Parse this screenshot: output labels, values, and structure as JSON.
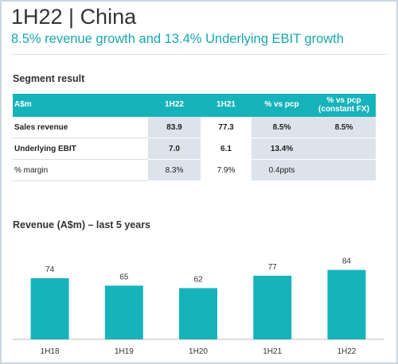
{
  "header": {
    "title": "1H22 | China",
    "subtitle": "8.5% revenue growth and 13.4% Underlying EBIT growth"
  },
  "table": {
    "title": "Segment result",
    "columns": [
      "A$m",
      "1H22",
      "1H21",
      "% vs pcp",
      "% vs pcp (constant FX)"
    ],
    "rows": [
      [
        "Sales revenue",
        "83.9",
        "77.3",
        "8.5%",
        "8.5%"
      ],
      [
        "Underlying EBIT",
        "7.0",
        "6.1",
        "13.4%",
        ""
      ],
      [
        "% margin",
        "8.3%",
        "7.9%",
        "0.4ppts",
        ""
      ]
    ]
  },
  "chart_data": {
    "type": "bar",
    "title": "Revenue (A$m) – last 5 years",
    "categories": [
      "1H18",
      "1H19",
      "1H20",
      "1H21",
      "1H22"
    ],
    "values": [
      74,
      65,
      62,
      77,
      84
    ],
    "color": "#17b3bb"
  }
}
